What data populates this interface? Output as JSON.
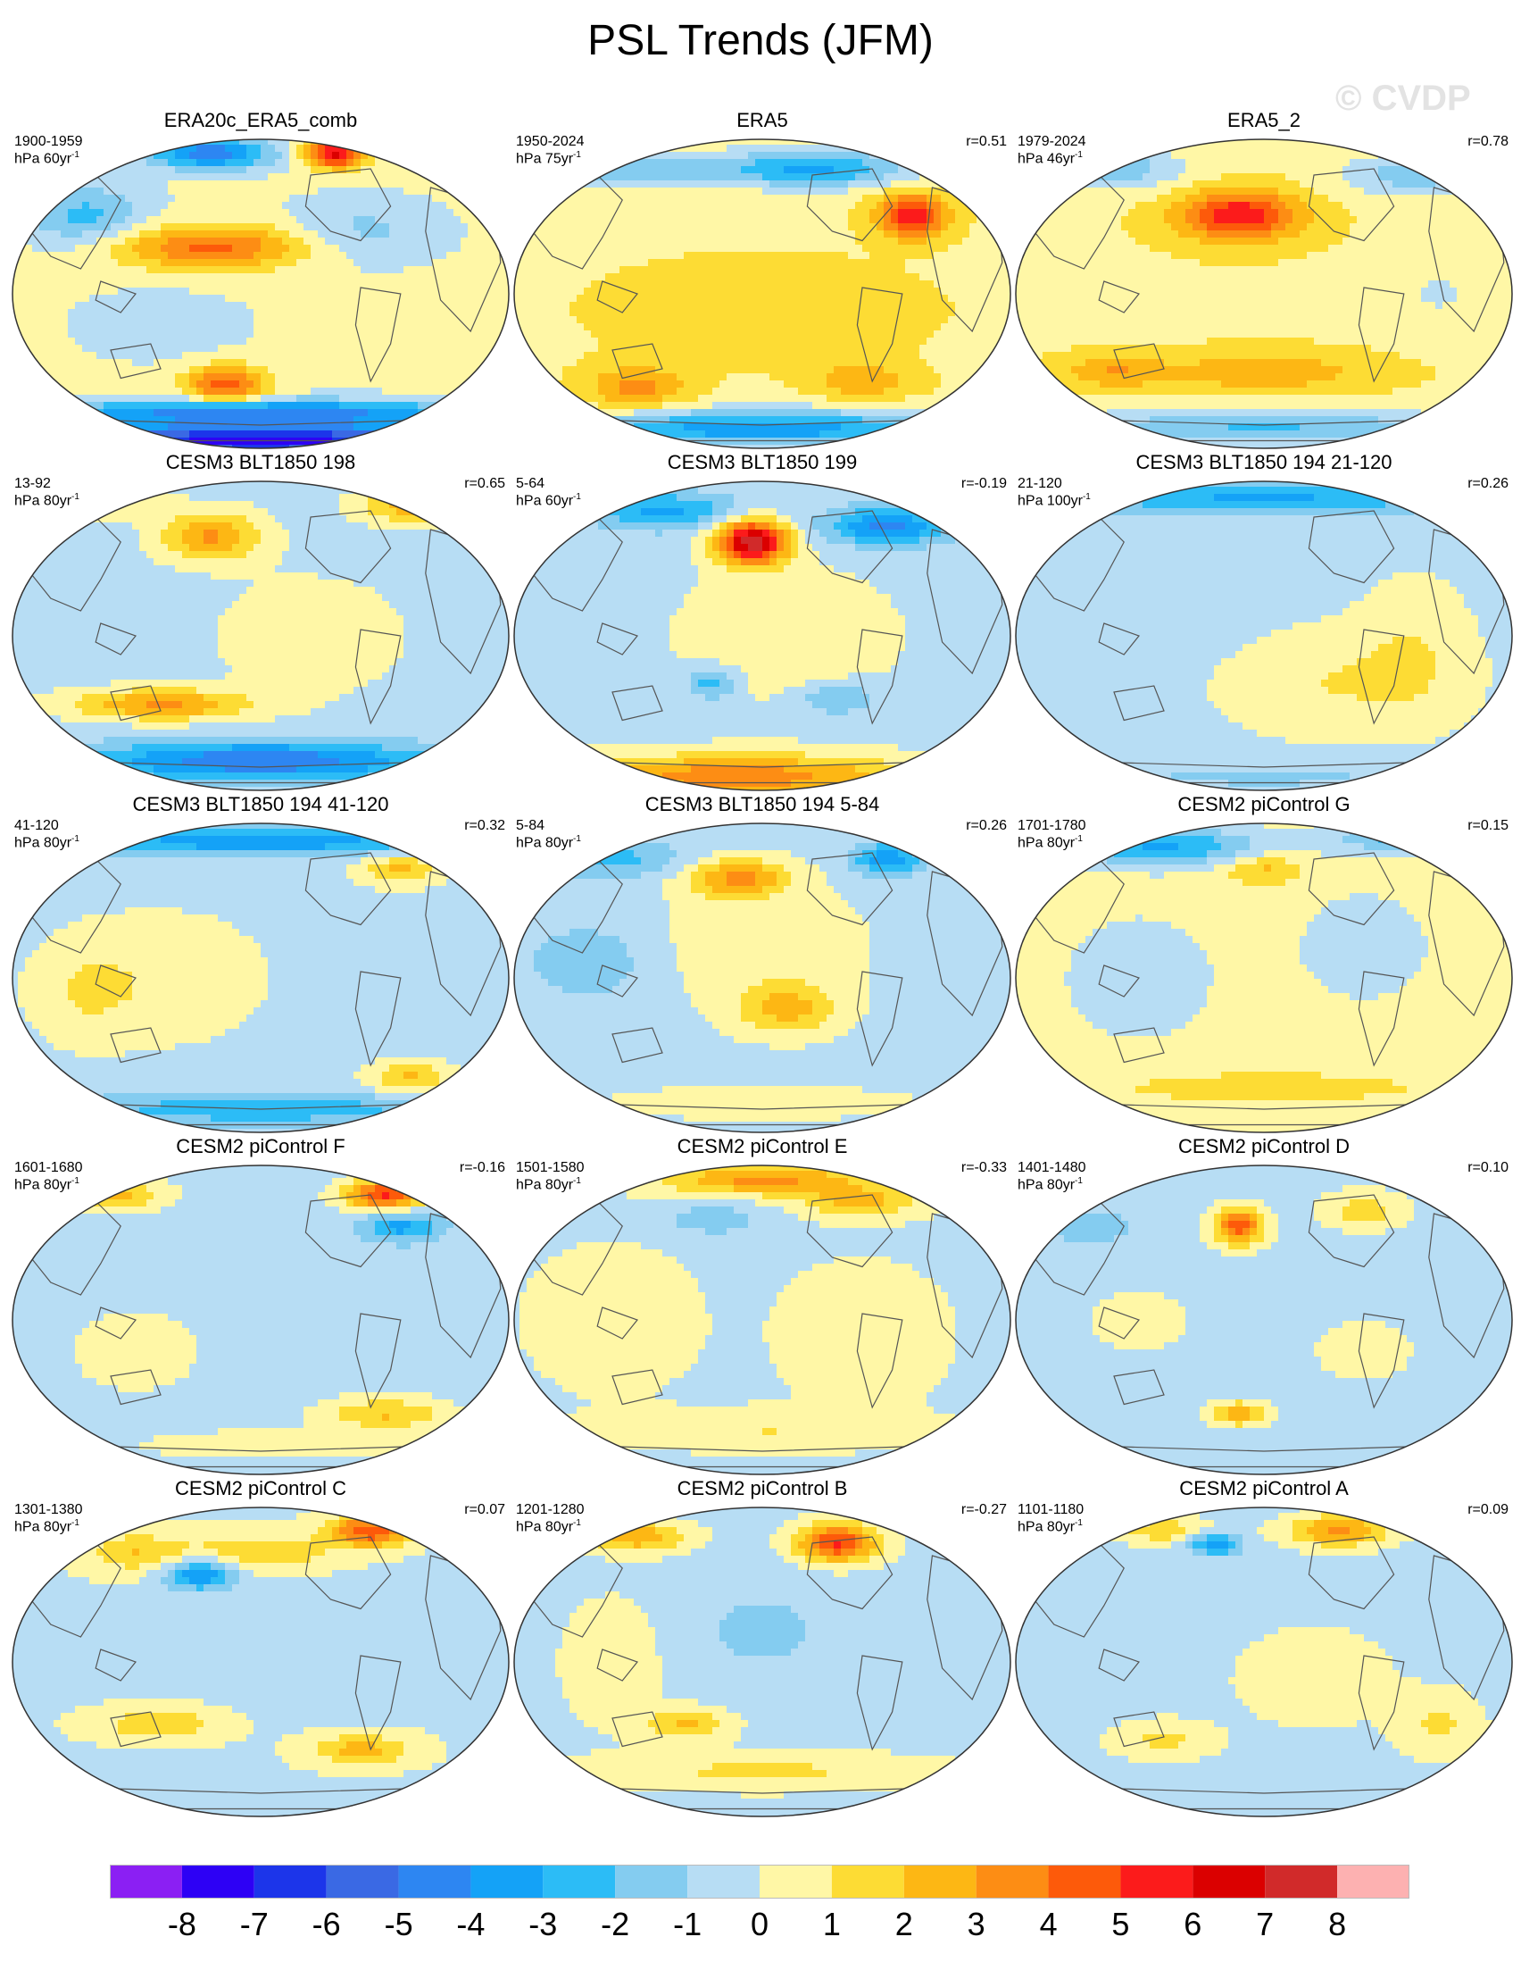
{
  "title": "PSL Trends (JFM)",
  "watermark": "© CVDP",
  "chart_data": {
    "type": "heatmap",
    "variable": "PSL",
    "season": "JFM",
    "projection": "Robinson-like global maps, Pacific-centered",
    "colorbar": {
      "labels": [
        "-8",
        "-7",
        "-6",
        "-5",
        "-4",
        "-3",
        "-2",
        "-1",
        "0",
        "1",
        "2",
        "3",
        "4",
        "5",
        "6",
        "7",
        "8"
      ],
      "colors": [
        "#8b1ff3",
        "#2d00f5",
        "#1c35ea",
        "#3a69e4",
        "#2d86f2",
        "#14a2f7",
        "#2cbcf6",
        "#84ccf0",
        "#b7ddf4",
        "#fff7a6",
        "#fddc34",
        "#fdb714",
        "#fd8d14",
        "#fd5a0a",
        "#fc1b1b",
        "#db0000",
        "#d12a2a",
        "#fdb1b1"
      ]
    },
    "panels": [
      {
        "title": "ERA20c_ERA5_comb",
        "period": "1900-1959",
        "unit_base": "hPa 60yr",
        "unit_exp": "-1",
        "r": ""
      },
      {
        "title": "ERA5",
        "period": "1950-2024",
        "unit_base": "hPa 75yr",
        "unit_exp": "-1",
        "r": "r=0.51"
      },
      {
        "title": "ERA5_2",
        "period": "1979-2024",
        "unit_base": "hPa 46yr",
        "unit_exp": "-1",
        "r": "r=0.78"
      },
      {
        "title": "CESM3 BLT1850 198",
        "period": "13-92",
        "unit_base": "hPa 80yr",
        "unit_exp": "-1",
        "r": "r=0.65"
      },
      {
        "title": "CESM3 BLT1850 199",
        "period": "5-64",
        "unit_base": "hPa 60yr",
        "unit_exp": "-1",
        "r": "r=-0.19"
      },
      {
        "title": "CESM3 BLT1850 194 21-120",
        "period": "21-120",
        "unit_base": "hPa 100yr",
        "unit_exp": "-1",
        "r": "r=0.26"
      },
      {
        "title": "CESM3 BLT1850 194 41-120",
        "period": "41-120",
        "unit_base": "hPa 80yr",
        "unit_exp": "-1",
        "r": "r=0.32"
      },
      {
        "title": "CESM3 BLT1850 194 5-84",
        "period": "5-84",
        "unit_base": "hPa 80yr",
        "unit_exp": "-1",
        "r": "r=0.26"
      },
      {
        "title": "CESM2 piControl G",
        "period": "1701-1780",
        "unit_base": "hPa 80yr",
        "unit_exp": "-1",
        "r": "r=0.15"
      },
      {
        "title": "CESM2 piControl F",
        "period": "1601-1680",
        "unit_base": "hPa 80yr",
        "unit_exp": "-1",
        "r": "r=-0.16"
      },
      {
        "title": "CESM2 piControl E",
        "period": "1501-1580",
        "unit_base": "hPa 80yr",
        "unit_exp": "-1",
        "r": "r=-0.33"
      },
      {
        "title": "CESM2 piControl D",
        "period": "1401-1480",
        "unit_base": "hPa 80yr",
        "unit_exp": "-1",
        "r": "r=0.10"
      },
      {
        "title": "CESM2 piControl C",
        "period": "1301-1380",
        "unit_base": "hPa 80yr",
        "unit_exp": "-1",
        "r": "r=0.07"
      },
      {
        "title": "CESM2 piControl B",
        "period": "1201-1280",
        "unit_base": "hPa 80yr",
        "unit_exp": "-1",
        "r": "r=-0.27"
      },
      {
        "title": "CESM2 piControl A",
        "period": "1101-1180",
        "unit_base": "hPa 80yr",
        "unit_exp": "-1",
        "r": "r=0.09"
      }
    ],
    "fields": [
      {
        "base": 0.2,
        "blobs": [
          [
            0.5,
            0.97,
            0.45,
            0.05,
            -8
          ],
          [
            0.5,
            0.88,
            0.45,
            0.04,
            -5
          ],
          [
            0.43,
            0.79,
            0.08,
            0.06,
            4.5
          ],
          [
            0.4,
            0.35,
            0.2,
            0.07,
            4
          ],
          [
            0.65,
            0.05,
            0.06,
            0.05,
            6
          ],
          [
            0.4,
            0.05,
            0.12,
            0.05,
            -5
          ],
          [
            0.15,
            0.25,
            0.12,
            0.1,
            -2.5
          ],
          [
            0.7,
            0.3,
            0.15,
            0.1,
            -1.5
          ],
          [
            0.3,
            0.6,
            0.15,
            0.1,
            -1
          ]
        ]
      },
      {
        "base": 0.8,
        "blobs": [
          [
            0.5,
            0.93,
            0.4,
            0.06,
            -4.5
          ],
          [
            0.8,
            0.25,
            0.07,
            0.07,
            5
          ],
          [
            0.6,
            0.1,
            0.2,
            0.06,
            -4
          ],
          [
            0.2,
            0.1,
            0.2,
            0.06,
            -2.5
          ],
          [
            0.25,
            0.8,
            0.1,
            0.07,
            2.5
          ],
          [
            0.7,
            0.78,
            0.1,
            0.06,
            2
          ],
          [
            0.5,
            0.55,
            0.3,
            0.15,
            1
          ]
        ]
      },
      {
        "base": 0.9,
        "blobs": [
          [
            0.45,
            0.25,
            0.12,
            0.08,
            5
          ],
          [
            0.5,
            0.93,
            0.45,
            0.06,
            -3
          ],
          [
            0.2,
            0.1,
            0.15,
            0.07,
            -2.5
          ],
          [
            0.8,
            0.12,
            0.15,
            0.07,
            -2.5
          ],
          [
            0.85,
            0.5,
            0.12,
            0.12,
            -1
          ],
          [
            0.5,
            0.75,
            0.2,
            0.06,
            2
          ],
          [
            0.2,
            0.75,
            0.1,
            0.05,
            2
          ]
        ]
      },
      {
        "base": -0.4,
        "blobs": [
          [
            0.4,
            0.18,
            0.1,
            0.08,
            3.5
          ],
          [
            0.8,
            0.08,
            0.1,
            0.06,
            3
          ],
          [
            0.3,
            0.72,
            0.18,
            0.05,
            3.5
          ],
          [
            0.5,
            0.9,
            0.35,
            0.06,
            -4.5
          ],
          [
            0.6,
            0.5,
            0.2,
            0.2,
            1
          ],
          [
            0.15,
            0.05,
            0.12,
            0.06,
            2.5
          ]
        ]
      },
      {
        "base": -0.3,
        "blobs": [
          [
            0.48,
            0.2,
            0.07,
            0.07,
            8
          ],
          [
            0.75,
            0.15,
            0.12,
            0.06,
            -4
          ],
          [
            0.3,
            0.1,
            0.15,
            0.06,
            -3
          ],
          [
            0.45,
            0.95,
            0.35,
            0.07,
            4
          ],
          [
            0.55,
            0.5,
            0.2,
            0.2,
            1.2
          ],
          [
            0.65,
            0.7,
            0.08,
            0.05,
            -2
          ],
          [
            0.4,
            0.65,
            0.05,
            0.05,
            -2.5
          ]
        ]
      },
      {
        "base": -0.2,
        "blobs": [
          [
            0.5,
            0.06,
            0.4,
            0.05,
            -3
          ],
          [
            0.65,
            0.65,
            0.2,
            0.15,
            1.2
          ],
          [
            0.3,
            0.4,
            0.15,
            0.15,
            -0.5
          ],
          [
            0.5,
            0.95,
            0.4,
            0.05,
            -1
          ],
          [
            0.8,
            0.55,
            0.1,
            0.2,
            1
          ]
        ]
      },
      {
        "base": -0.3,
        "blobs": [
          [
            0.5,
            0.06,
            0.4,
            0.05,
            -3.5
          ],
          [
            0.5,
            0.92,
            0.4,
            0.05,
            -2.5
          ],
          [
            0.8,
            0.82,
            0.08,
            0.05,
            2.5
          ],
          [
            0.78,
            0.15,
            0.08,
            0.05,
            2.5
          ],
          [
            0.3,
            0.5,
            0.2,
            0.2,
            1
          ],
          [
            0.15,
            0.55,
            0.1,
            0.15,
            1
          ]
        ]
      },
      {
        "base": -0.3,
        "blobs": [
          [
            0.45,
            0.18,
            0.1,
            0.06,
            3.5
          ],
          [
            0.55,
            0.6,
            0.1,
            0.08,
            2.5
          ],
          [
            0.75,
            0.12,
            0.07,
            0.05,
            -3.5
          ],
          [
            0.2,
            0.12,
            0.15,
            0.06,
            -2
          ],
          [
            0.15,
            0.45,
            0.12,
            0.12,
            -1.5
          ],
          [
            0.5,
            0.9,
            0.3,
            0.05,
            1
          ],
          [
            0.5,
            0.4,
            0.2,
            0.2,
            1
          ]
        ]
      },
      {
        "base": 0.4,
        "blobs": [
          [
            0.3,
            0.08,
            0.2,
            0.06,
            -3.5
          ],
          [
            0.8,
            0.05,
            0.15,
            0.05,
            -3
          ],
          [
            0.5,
            0.15,
            0.08,
            0.05,
            2
          ],
          [
            0.25,
            0.5,
            0.15,
            0.2,
            -1
          ],
          [
            0.7,
            0.4,
            0.15,
            0.2,
            -0.8
          ],
          [
            0.5,
            0.85,
            0.4,
            0.06,
            1
          ]
        ]
      },
      {
        "base": -0.4,
        "blobs": [
          [
            0.75,
            0.1,
            0.08,
            0.05,
            5.5
          ],
          [
            0.2,
            0.1,
            0.1,
            0.05,
            3
          ],
          [
            0.78,
            0.2,
            0.08,
            0.05,
            -3
          ],
          [
            0.75,
            0.8,
            0.12,
            0.05,
            2.5
          ],
          [
            0.25,
            0.6,
            0.15,
            0.15,
            0.8
          ],
          [
            0.55,
            0.9,
            0.3,
            0.05,
            1
          ]
        ]
      },
      {
        "base": -0.2,
        "blobs": [
          [
            0.5,
            0.05,
            0.2,
            0.05,
            3.5
          ],
          [
            0.7,
            0.12,
            0.12,
            0.05,
            2.5
          ],
          [
            0.4,
            0.18,
            0.1,
            0.05,
            -1.5
          ],
          [
            0.2,
            0.5,
            0.15,
            0.2,
            1
          ],
          [
            0.7,
            0.55,
            0.15,
            0.2,
            1
          ],
          [
            0.5,
            0.85,
            0.3,
            0.06,
            1.2
          ]
        ]
      },
      {
        "base": -0.4,
        "blobs": [
          [
            0.45,
            0.2,
            0.05,
            0.06,
            5
          ],
          [
            0.7,
            0.15,
            0.08,
            0.06,
            2
          ],
          [
            0.45,
            0.8,
            0.06,
            0.04,
            3
          ],
          [
            0.7,
            0.6,
            0.1,
            0.1,
            1
          ],
          [
            0.25,
            0.5,
            0.1,
            0.1,
            1
          ],
          [
            0.15,
            0.2,
            0.1,
            0.06,
            -1.2
          ]
        ]
      },
      {
        "base": -0.1,
        "blobs": [
          [
            0.72,
            0.08,
            0.08,
            0.05,
            5
          ],
          [
            0.5,
            0.15,
            0.15,
            0.06,
            2
          ],
          [
            0.38,
            0.22,
            0.07,
            0.05,
            -4
          ],
          [
            0.25,
            0.15,
            0.1,
            0.06,
            2
          ],
          [
            0.3,
            0.7,
            0.12,
            0.05,
            2
          ],
          [
            0.7,
            0.78,
            0.1,
            0.05,
            2.5
          ],
          [
            0.6,
            0.45,
            0.2,
            0.2,
            -0.5
          ]
        ]
      },
      {
        "base": -0.3,
        "blobs": [
          [
            0.65,
            0.12,
            0.08,
            0.06,
            5.5
          ],
          [
            0.25,
            0.1,
            0.1,
            0.05,
            3
          ],
          [
            0.5,
            0.4,
            0.15,
            0.15,
            -1
          ],
          [
            0.5,
            0.85,
            0.35,
            0.06,
            1.5
          ],
          [
            0.35,
            0.7,
            0.08,
            0.05,
            2.5
          ],
          [
            0.2,
            0.5,
            0.1,
            0.2,
            1
          ]
        ]
      },
      {
        "base": -0.3,
        "blobs": [
          [
            0.65,
            0.08,
            0.1,
            0.05,
            3.5
          ],
          [
            0.4,
            0.12,
            0.05,
            0.04,
            -3.5
          ],
          [
            0.3,
            0.08,
            0.1,
            0.04,
            2
          ],
          [
            0.6,
            0.55,
            0.15,
            0.15,
            1
          ],
          [
            0.3,
            0.75,
            0.1,
            0.06,
            1.5
          ],
          [
            0.85,
            0.7,
            0.08,
            0.1,
            1.5
          ]
        ]
      }
    ]
  }
}
